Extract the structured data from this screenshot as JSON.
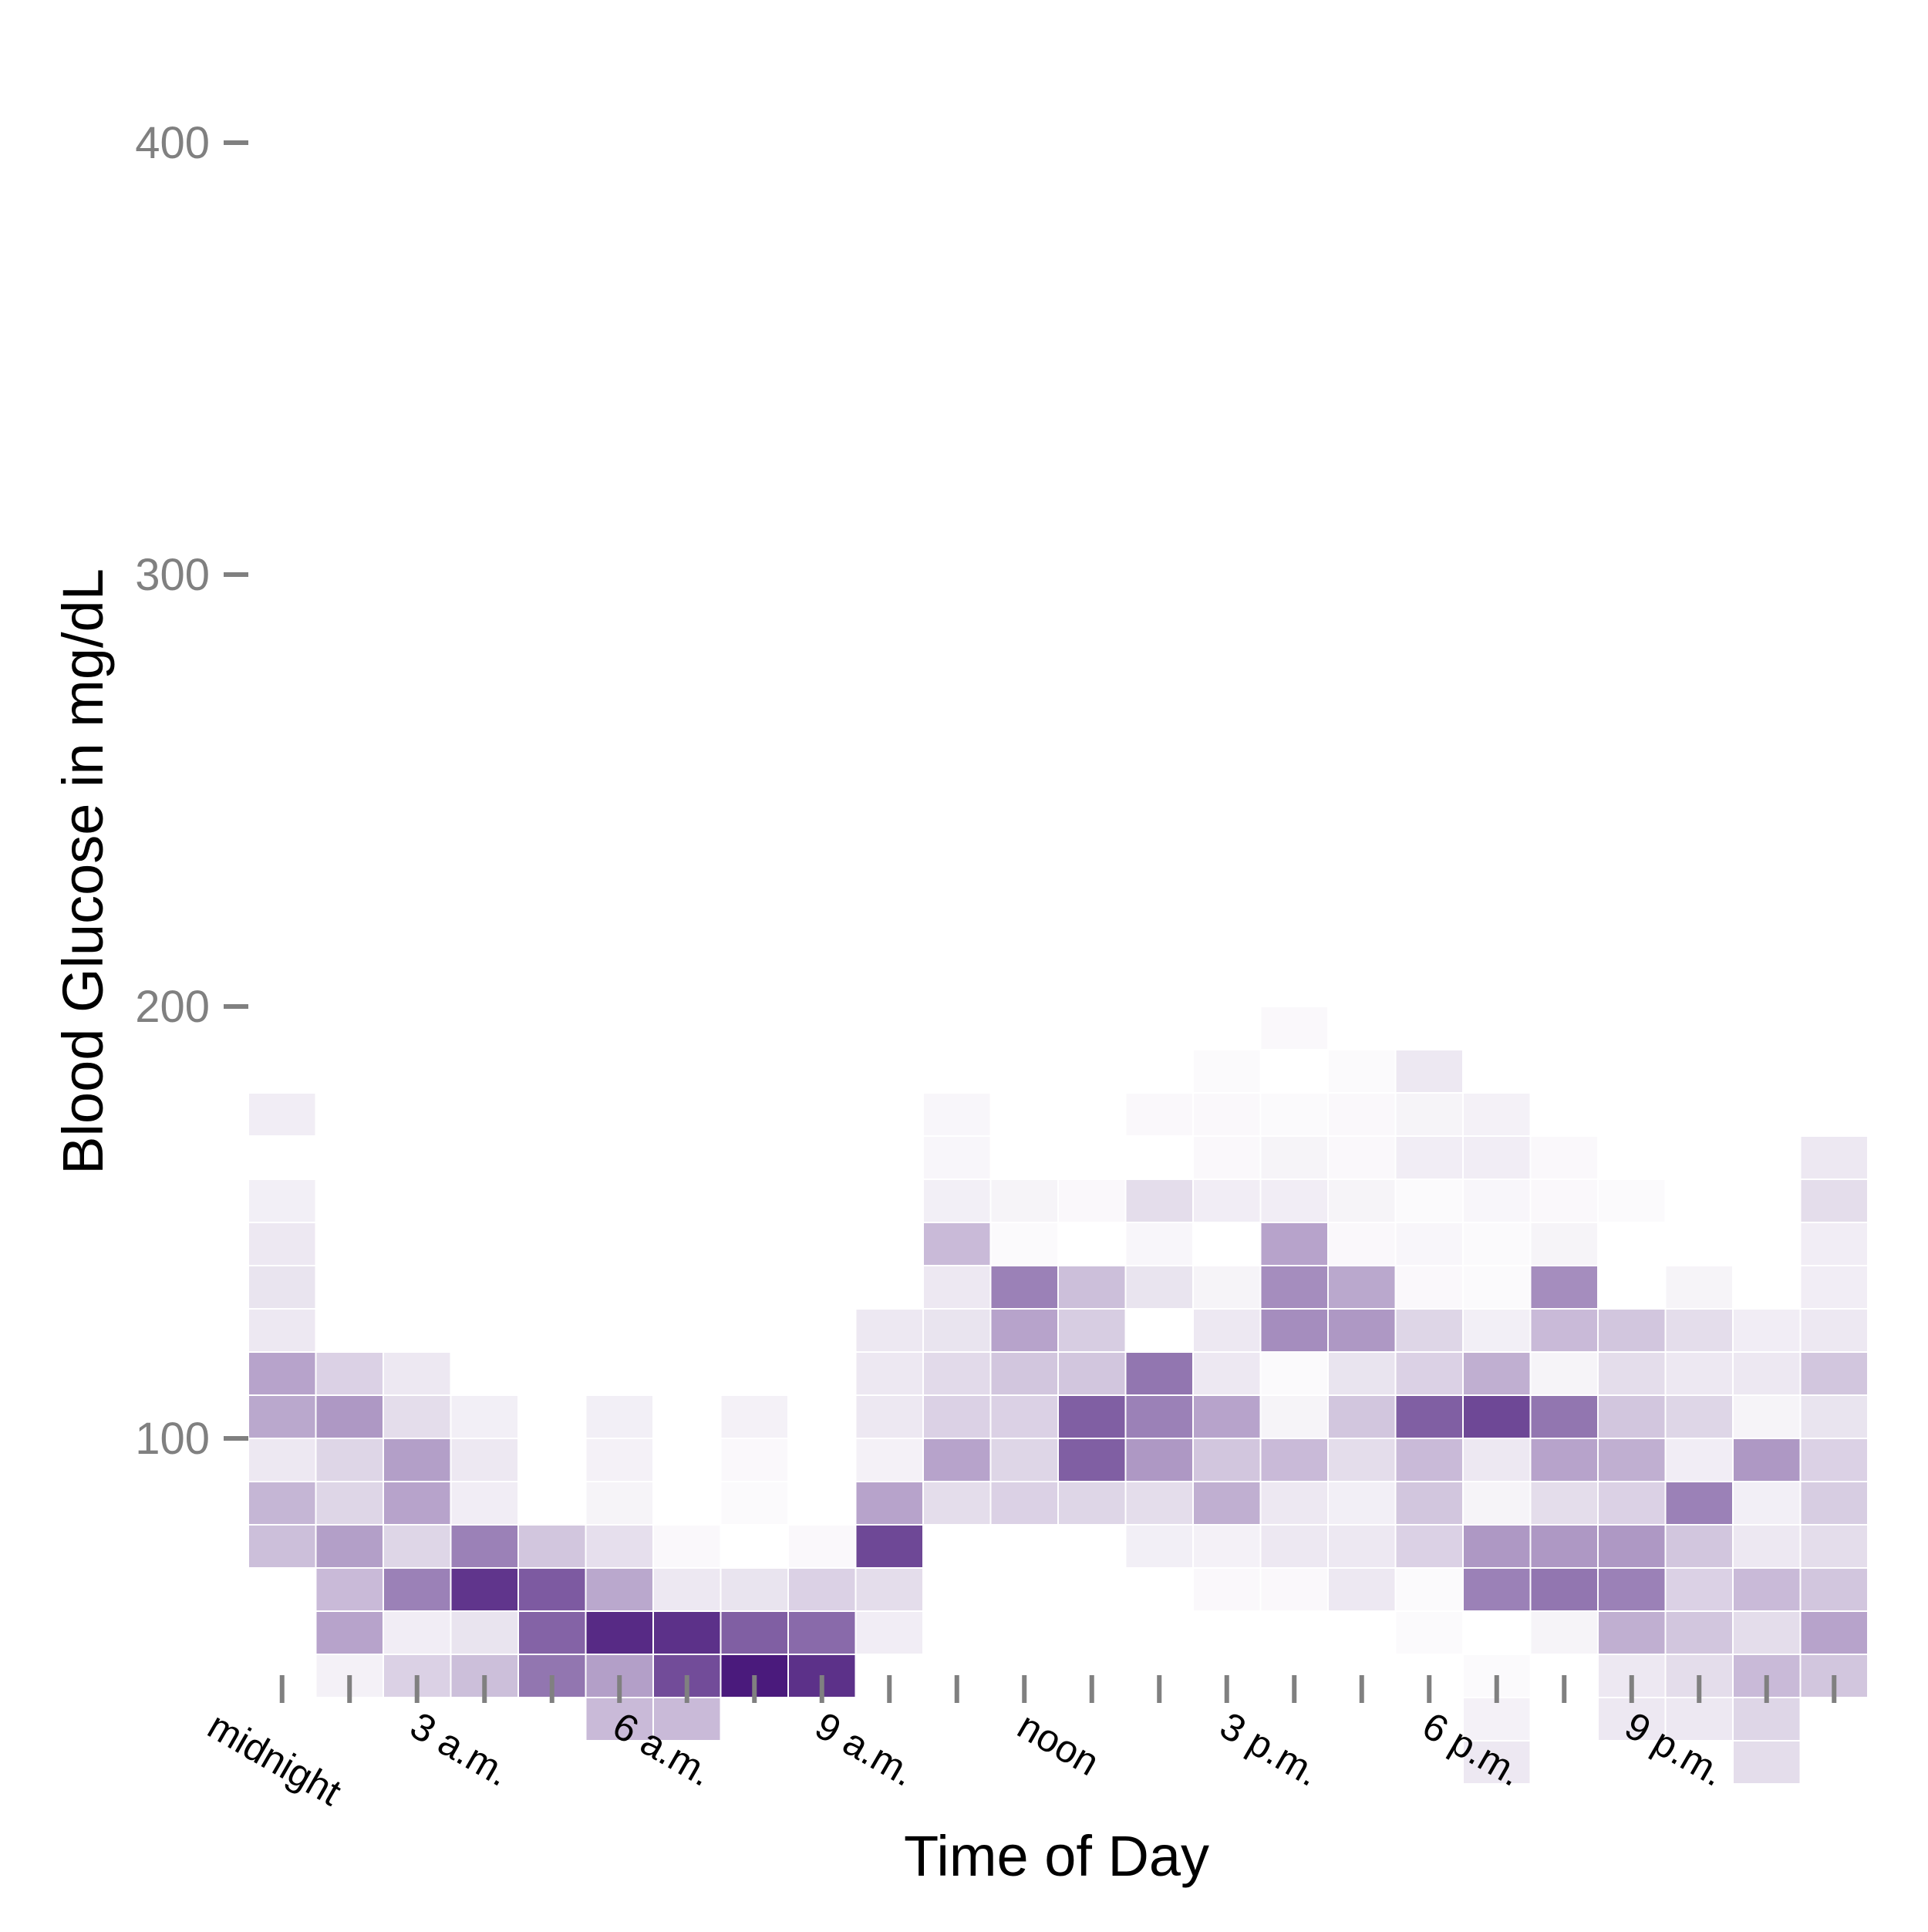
{
  "chart_data": {
    "type": "heatmap",
    "title": "",
    "xlabel": "Time of Day",
    "ylabel": "Blood Glucose in mg/dL",
    "x_tick_labels": [
      "midnight",
      "3 a.m.",
      "6 a.m.",
      "9 a.m.",
      "noon",
      "3 p.m.",
      "6 p.m.",
      "9 p.m."
    ],
    "x_tick_hours": [
      0,
      3,
      6,
      9,
      12,
      15,
      18,
      21
    ],
    "x_tick_marks_hours": [
      0,
      1,
      2,
      3,
      4,
      5,
      6,
      7,
      8,
      9,
      10,
      11,
      12,
      13,
      14,
      15,
      16,
      17,
      18,
      19,
      20,
      21,
      22,
      23
    ],
    "x_range_hours": [
      0,
      24
    ],
    "y_ticks": [
      100,
      200,
      300,
      400
    ],
    "y_tick_labels": [
      "100",
      "200",
      "300",
      "400"
    ],
    "ylim": [
      45,
      405
    ],
    "grid": false,
    "legend": "none",
    "color_low": "#ffffff",
    "color_high": "#4a1a7c",
    "bin_hours": 1,
    "bin_mg_dl": 10,
    "bins_y_start": [
      50,
      60,
      70,
      80,
      90,
      100,
      110,
      120,
      130,
      140,
      150,
      160,
      170,
      180,
      190
    ],
    "intensity_by_hour_top_to_bottom": [
      [
        0.08,
        0,
        0.07,
        0.1,
        0.12,
        0.1,
        0.4,
        0.38,
        0.1,
        0.32,
        0.28
      ],
      [
        0,
        0,
        0,
        0.2,
        0.45,
        0.18,
        0.18,
        0.42,
        0.3,
        0.4,
        0.06
      ],
      [
        0,
        0,
        0,
        0.1,
        0.15,
        0.42,
        0.4,
        0.18,
        0.55,
        0.08,
        0.2
      ],
      [
        0,
        0,
        0,
        0,
        0.07,
        0.1,
        0.08,
        0.55,
        0.88,
        0.12,
        0.28
      ],
      [
        0,
        0,
        0,
        0,
        0,
        0,
        0,
        0.25,
        0.72,
        0.68,
        0.6,
        0
      ],
      [
        0,
        0,
        0,
        0,
        0.07,
        0.06,
        0.05,
        0.14,
        0.38,
        0.93,
        0.42,
        0.3
      ],
      [
        0,
        0,
        0,
        0,
        0,
        0,
        0,
        0.03,
        0.1,
        0.9,
        0.78,
        0.3
      ],
      [
        0,
        0,
        0,
        0,
        0.06,
        0.03,
        0.02,
        0,
        0.12,
        0.7,
        1.0
      ],
      [
        0,
        0,
        0,
        0,
        0,
        0,
        0,
        0.03,
        0.2,
        0.65,
        0.9
      ],
      [
        0,
        0,
        0,
        0,
        0,
        0.1,
        0.1,
        0.1,
        0.06,
        0.4,
        0.8,
        0.15,
        0.08
      ],
      [
        0.04,
        0.04,
        0.07,
        0.3,
        0.1,
        0.12,
        0.16,
        0.2,
        0.4,
        0.15,
        0
      ],
      [
        0,
        0.05,
        0.02,
        0.55,
        0.4,
        0.25,
        0.2,
        0.18,
        0.2
      ],
      [
        0,
        0.03,
        0,
        0.28,
        0.22,
        0.25,
        0.7,
        0.7,
        0.18
      ],
      [
        0.03,
        0,
        0.15,
        0.04,
        0.12,
        0,
        0.6,
        0.55,
        0.45,
        0.15,
        0.07
      ],
      [
        0.02,
        0.03,
        0.03,
        0.08,
        0,
        0.05,
        0.1,
        0.1,
        0.4,
        0.25,
        0.35,
        0.06,
        0.03
      ],
      [
        0.03,
        0,
        0.02,
        0.05,
        0.08,
        0.4,
        0.5,
        0.5,
        0.02,
        0.05,
        0.3,
        0.1,
        0.1,
        0.03,
        0
      ],
      [
        0.02,
        0.03,
        0.03,
        0.05,
        0.03,
        0.38,
        0.45,
        0.12,
        0.25,
        0.15,
        0.07,
        0.1,
        0.1
      ],
      [
        0.1,
        0.05,
        0.08,
        0.02,
        0.04,
        0.03,
        0.18,
        0.2,
        0.7,
        0.3,
        0.25,
        0.2,
        0.02,
        0.02
      ],
      [
        0.06,
        0.08,
        0.04,
        0.02,
        0.02,
        0.07,
        0.35,
        0.8,
        0.1,
        0.05,
        0.45,
        0.55,
        0,
        0.02,
        0.06,
        0.1
      ],
      [
        0.03,
        0.03,
        0.05,
        0.5,
        0.3,
        0.05,
        0.6,
        0.4,
        0.15,
        0.45,
        0.6,
        0.05
      ],
      [
        0.02,
        0,
        0,
        0.25,
        0.15,
        0.25,
        0.35,
        0.2,
        0.45,
        0.55,
        0.35,
        0.1,
        0.1
      ],
      [
        0,
        0,
        0.05,
        0.15,
        0.1,
        0.18,
        0.08,
        0.55,
        0.25,
        0.2,
        0.25,
        0.15,
        0.1
      ],
      [
        0,
        0,
        0,
        0.08,
        0.1,
        0.05,
        0.45,
        0.07,
        0.1,
        0.3,
        0.15,
        0.3,
        0.18,
        0.15
      ],
      [
        0.1,
        0.15,
        0.08,
        0.08,
        0.1,
        0.25,
        0.12,
        0.2,
        0.22,
        0.15,
        0.25,
        0.4,
        0.25
      ]
    ]
  }
}
